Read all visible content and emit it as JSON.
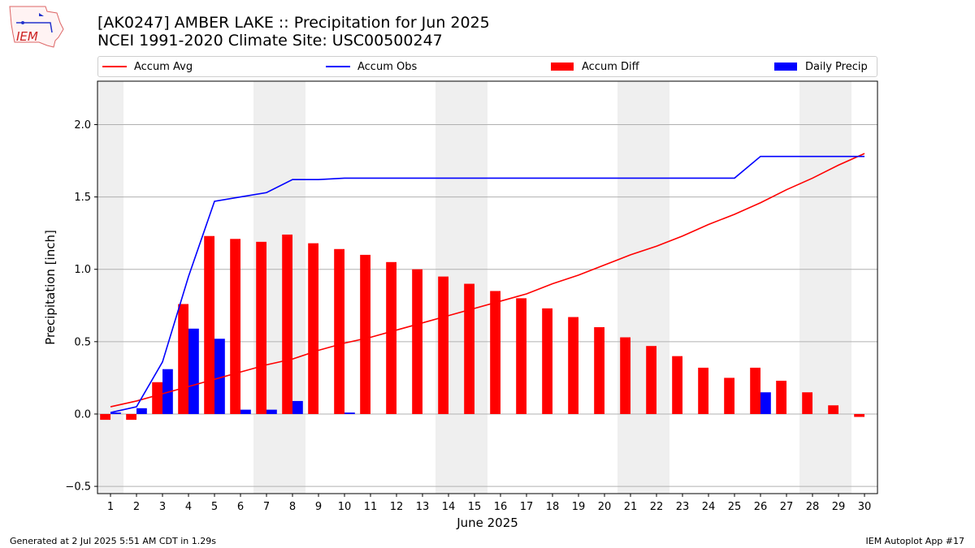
{
  "header": {
    "logo_text": "IEM",
    "title_line1": "[AK0247] AMBER LAKE :: Precipitation for Jun 2025",
    "title_line2": "NCEI 1991-2020 Climate Site: USC00500247"
  },
  "legend": [
    {
      "label": "Accum Avg",
      "kind": "line",
      "color": "#ff0000"
    },
    {
      "label": "Accum Obs",
      "kind": "line",
      "color": "#0000ff"
    },
    {
      "label": "Accum Diff",
      "kind": "box",
      "color": "#ff0000"
    },
    {
      "label": "Daily Precip",
      "kind": "box",
      "color": "#0000ff"
    }
  ],
  "footer": {
    "left": "Generated at 2 Jul 2025 5:51 AM CDT in 1.29s",
    "right": "IEM Autoplot App #17"
  },
  "chart_data": {
    "type": "bar",
    "title": "[AK0247] AMBER LAKE :: Precipitation for Jun 2025",
    "subtitle": "NCEI 1991-2020 Climate Site: USC00500247",
    "xlabel": "June 2025",
    "ylabel": "Precipitation [inch]",
    "x": [
      1,
      2,
      3,
      4,
      5,
      6,
      7,
      8,
      9,
      10,
      11,
      12,
      13,
      14,
      15,
      16,
      17,
      18,
      19,
      20,
      21,
      22,
      23,
      24,
      25,
      26,
      27,
      28,
      29,
      30
    ],
    "xlim": [
      0.5,
      30.5
    ],
    "ylim": [
      -0.55,
      2.3
    ],
    "yticks": [
      -0.5,
      0.0,
      0.5,
      1.0,
      1.5,
      2.0
    ],
    "ytick_labels": [
      "−0.5",
      "0.0",
      "0.5",
      "1.0",
      "1.5",
      "2.0"
    ],
    "grid": "horizontal",
    "legend_position": "top",
    "weekend_shading": [
      1,
      7,
      8,
      14,
      15,
      21,
      22,
      28,
      29
    ],
    "series": [
      {
        "name": "Accum Avg",
        "type": "line",
        "color": "#ff0000",
        "values": [
          0.05,
          0.09,
          0.14,
          0.19,
          0.24,
          0.29,
          0.34,
          0.38,
          0.44,
          0.49,
          0.53,
          0.58,
          0.63,
          0.68,
          0.73,
          0.78,
          0.83,
          0.9,
          0.96,
          1.03,
          1.1,
          1.16,
          1.23,
          1.31,
          1.38,
          1.46,
          1.55,
          1.63,
          1.72,
          1.8
        ]
      },
      {
        "name": "Accum Obs",
        "type": "line",
        "color": "#0000ff",
        "values": [
          0.01,
          0.05,
          0.36,
          0.95,
          1.47,
          1.5,
          1.53,
          1.62,
          1.62,
          1.63,
          1.63,
          1.63,
          1.63,
          1.63,
          1.63,
          1.63,
          1.63,
          1.63,
          1.63,
          1.63,
          1.63,
          1.63,
          1.63,
          1.63,
          1.63,
          1.78,
          1.78,
          1.78,
          1.78,
          1.78
        ]
      },
      {
        "name": "Accum Diff",
        "type": "bar",
        "color": "#ff0000",
        "values": [
          -0.04,
          -0.04,
          0.22,
          0.76,
          1.23,
          1.21,
          1.19,
          1.24,
          1.18,
          1.14,
          1.1,
          1.05,
          1.0,
          0.95,
          0.9,
          0.85,
          0.8,
          0.73,
          0.67,
          0.6,
          0.53,
          0.47,
          0.4,
          0.32,
          0.25,
          0.32,
          0.23,
          0.15,
          0.06,
          -0.02
        ]
      },
      {
        "name": "Daily Precip",
        "type": "bar",
        "color": "#0000ff",
        "values": [
          0.01,
          0.04,
          0.31,
          0.59,
          0.52,
          0.03,
          0.03,
          0.09,
          0,
          0.01,
          0,
          0,
          0,
          0,
          0,
          0,
          0,
          0,
          0,
          0,
          0,
          0,
          0,
          0,
          0,
          0.15,
          0,
          0,
          0,
          0
        ]
      }
    ]
  }
}
